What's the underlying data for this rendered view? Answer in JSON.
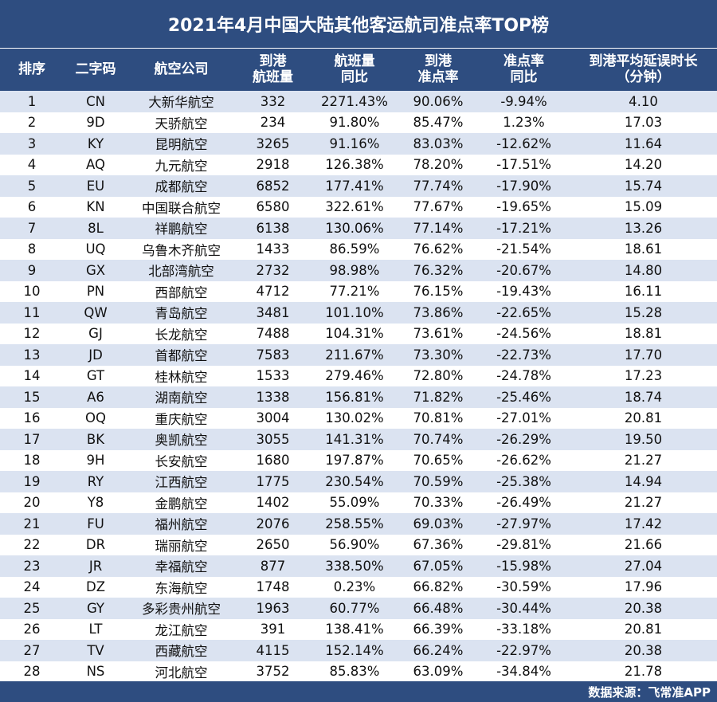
{
  "title": "2021年4月中国大陆其他客运航司准点率TOP榜",
  "headers": [
    "排序",
    "二字码",
    "航空公司",
    "到港\n航班量",
    "航班量\n同比",
    "到港\n准点率",
    "准点率\n同比",
    "到港平均延误时长\n（分钟）"
  ],
  "rows": [
    [
      "1",
      "CN",
      "大新华航空",
      "332",
      "2271.43%",
      "90.06%",
      "-9.94%",
      "4.10"
    ],
    [
      "2",
      "9D",
      "天骄航空",
      "234",
      "91.80%",
      "85.47%",
      "1.23%",
      "17.03"
    ],
    [
      "3",
      "KY",
      "昆明航空",
      "3265",
      "91.16%",
      "83.03%",
      "-12.62%",
      "11.64"
    ],
    [
      "4",
      "AQ",
      "九元航空",
      "2918",
      "126.38%",
      "78.20%",
      "-17.51%",
      "14.20"
    ],
    [
      "5",
      "EU",
      "成都航空",
      "6852",
      "177.41%",
      "77.74%",
      "-17.90%",
      "15.74"
    ],
    [
      "6",
      "KN",
      "中国联合航空",
      "6580",
      "322.61%",
      "77.67%",
      "-19.65%",
      "15.09"
    ],
    [
      "7",
      "8L",
      "祥鹏航空",
      "6138",
      "130.06%",
      "77.14%",
      "-17.21%",
      "13.26"
    ],
    [
      "8",
      "UQ",
      "乌鲁木齐航空",
      "1433",
      "86.59%",
      "76.62%",
      "-21.54%",
      "18.61"
    ],
    [
      "9",
      "GX",
      "北部湾航空",
      "2732",
      "98.98%",
      "76.32%",
      "-20.67%",
      "14.80"
    ],
    [
      "10",
      "PN",
      "西部航空",
      "4712",
      "77.21%",
      "76.15%",
      "-19.43%",
      "16.11"
    ],
    [
      "11",
      "QW",
      "青岛航空",
      "3481",
      "101.10%",
      "73.86%",
      "-22.65%",
      "15.28"
    ],
    [
      "12",
      "GJ",
      "长龙航空",
      "7488",
      "104.31%",
      "73.61%",
      "-24.56%",
      "18.81"
    ],
    [
      "13",
      "JD",
      "首都航空",
      "7583",
      "211.67%",
      "73.30%",
      "-22.73%",
      "17.70"
    ],
    [
      "14",
      "GT",
      "桂林航空",
      "1533",
      "279.46%",
      "72.80%",
      "-24.78%",
      "17.23"
    ],
    [
      "15",
      "A6",
      "湖南航空",
      "1338",
      "156.81%",
      "71.82%",
      "-25.46%",
      "18.74"
    ],
    [
      "16",
      "OQ",
      "重庆航空",
      "3004",
      "130.02%",
      "70.81%",
      "-27.01%",
      "20.81"
    ],
    [
      "17",
      "BK",
      "奥凯航空",
      "3055",
      "141.31%",
      "70.74%",
      "-26.29%",
      "19.50"
    ],
    [
      "18",
      "9H",
      "长安航空",
      "1680",
      "197.87%",
      "70.65%",
      "-26.62%",
      "21.27"
    ],
    [
      "19",
      "RY",
      "江西航空",
      "1775",
      "230.54%",
      "70.59%",
      "-25.38%",
      "14.94"
    ],
    [
      "20",
      "Y8",
      "金鹏航空",
      "1402",
      "55.09%",
      "70.33%",
      "-26.49%",
      "21.27"
    ],
    [
      "21",
      "FU",
      "福州航空",
      "2076",
      "258.55%",
      "69.03%",
      "-27.97%",
      "17.42"
    ],
    [
      "22",
      "DR",
      "瑞丽航空",
      "2650",
      "56.90%",
      "67.36%",
      "-29.81%",
      "21.66"
    ],
    [
      "23",
      "JR",
      "幸福航空",
      "877",
      "338.50%",
      "67.05%",
      "-15.98%",
      "27.04"
    ],
    [
      "24",
      "DZ",
      "东海航空",
      "1748",
      "0.23%",
      "66.82%",
      "-30.59%",
      "17.96"
    ],
    [
      "25",
      "GY",
      "多彩贵州航空",
      "1963",
      "60.77%",
      "66.48%",
      "-30.44%",
      "20.38"
    ],
    [
      "26",
      "LT",
      "龙江航空",
      "391",
      "138.41%",
      "66.39%",
      "-33.18%",
      "20.81"
    ],
    [
      "27",
      "TV",
      "西藏航空",
      "4115",
      "152.14%",
      "66.24%",
      "-22.97%",
      "20.38"
    ],
    [
      "28",
      "NS",
      "河北航空",
      "3752",
      "85.83%",
      "63.09%",
      "-34.84%",
      "21.78"
    ]
  ],
  "footer": "数据来源：飞常准APP",
  "colors": {
    "header_bg": "#2e4d80",
    "stripe": "#dbe3f1"
  }
}
